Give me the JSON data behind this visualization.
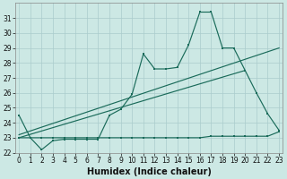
{
  "xlabel": "Humidex (Indice chaleur)",
  "background_color": "#cce8e4",
  "grid_color": "#aacccc",
  "line_color": "#1a6b5a",
  "x_values": [
    0,
    1,
    2,
    3,
    4,
    5,
    6,
    7,
    8,
    9,
    10,
    11,
    12,
    13,
    14,
    15,
    16,
    17,
    18,
    19,
    20,
    21,
    22,
    23
  ],
  "line1": [
    24.5,
    23.0,
    22.2,
    22.8,
    22.9,
    22.9,
    22.9,
    22.9,
    24.5,
    24.9,
    25.9,
    28.6,
    27.6,
    27.6,
    27.7,
    29.2,
    31.4,
    31.4,
    29.0,
    29.0,
    27.5,
    26.0,
    24.6,
    23.5
  ],
  "line2": [
    23.0,
    23.0,
    23.0,
    23.0,
    23.0,
    23.0,
    23.0,
    23.0,
    23.0,
    23.0,
    23.0,
    23.0,
    23.0,
    23.0,
    23.0,
    23.0,
    23.0,
    23.1,
    23.1,
    23.1,
    23.1,
    23.1,
    23.1,
    23.4
  ],
  "line3_x": [
    0,
    23
  ],
  "line3_y": [
    23.2,
    29.0
  ],
  "line4_x": [
    0,
    20
  ],
  "line4_y": [
    23.0,
    27.5
  ],
  "ylim": [
    22.0,
    32.0
  ],
  "xlim": [
    -0.3,
    23.3
  ],
  "yticks": [
    22,
    23,
    24,
    25,
    26,
    27,
    28,
    29,
    30,
    31
  ],
  "xticks": [
    0,
    1,
    2,
    3,
    4,
    5,
    6,
    7,
    8,
    9,
    10,
    11,
    12,
    13,
    14,
    15,
    16,
    17,
    18,
    19,
    20,
    21,
    22,
    23
  ],
  "xlabel_fontsize": 7.0,
  "tick_fontsize": 5.5
}
